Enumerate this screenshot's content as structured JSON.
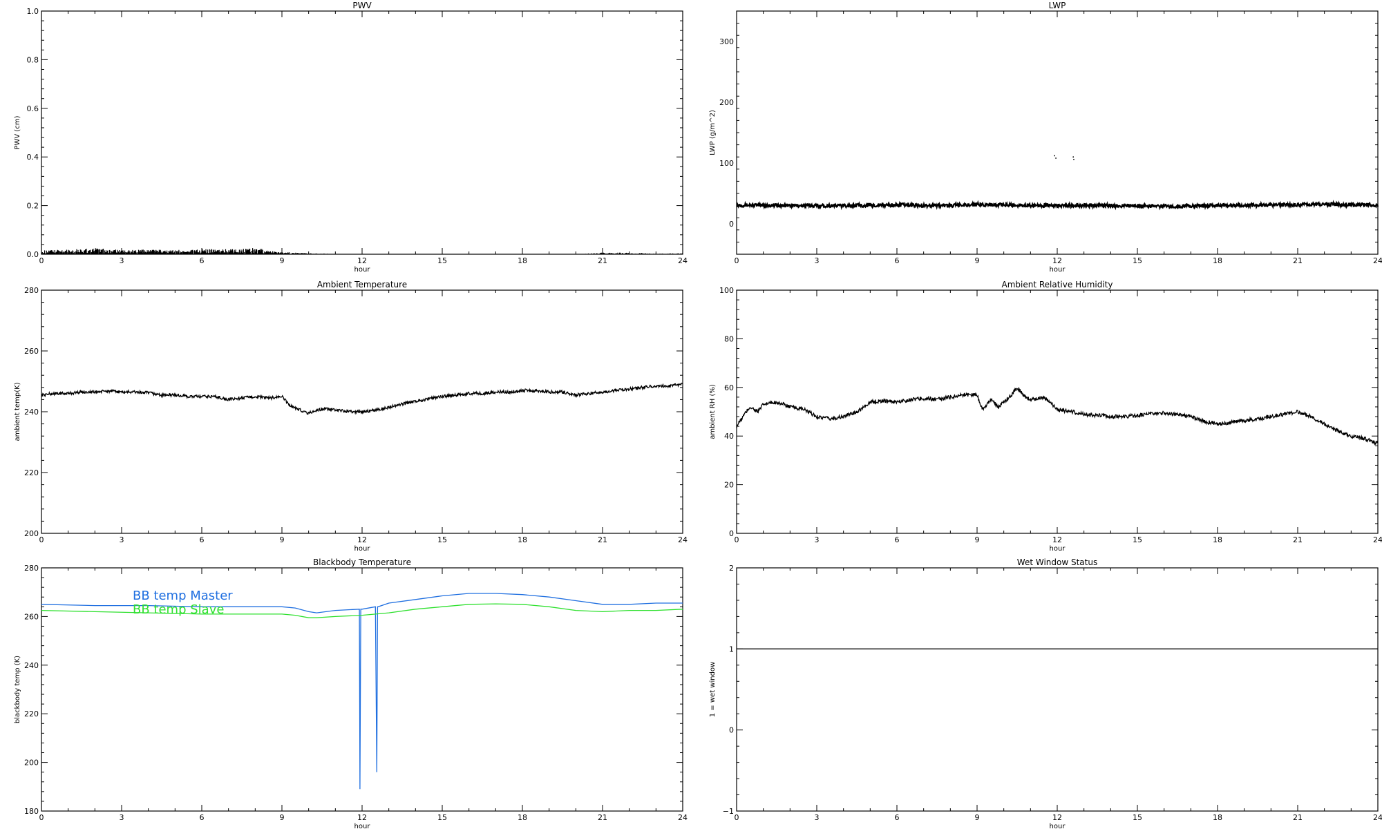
{
  "chart_data": [
    {
      "type": "line",
      "title": "PWV",
      "xlabel": "hour",
      "ylabel": "PWV (cm)",
      "xlim": [
        0,
        24
      ],
      "ylim": [
        0,
        1
      ],
      "xticks": [
        0,
        3,
        6,
        9,
        12,
        15,
        18,
        21,
        24
      ],
      "yticks": [
        0.0,
        0.2,
        0.4,
        0.6,
        0.8,
        1.0
      ],
      "ytick_labels": [
        "0.0",
        "0.2",
        "0.4",
        "0.6",
        "0.8",
        "1.0"
      ],
      "series": [
        {
          "color": "#000000",
          "style": "spiky",
          "x": [
            0,
            1,
            2,
            3,
            4,
            5,
            6,
            7,
            8,
            9,
            10,
            11,
            12,
            13,
            14,
            15,
            16,
            17,
            18,
            19,
            20,
            21,
            22,
            23,
            24
          ],
          "y": [
            0.01,
            0.012,
            0.015,
            0.01,
            0.012,
            0.01,
            0.013,
            0.012,
            0.015,
            0.006,
            0.003,
            0.001,
            0.0,
            0.0,
            0.0,
            0.0,
            0.0,
            0.0,
            0.0,
            0.0,
            0.0,
            0.004,
            0.004,
            0.002,
            0.003
          ],
          "noise": 0.01
        }
      ]
    },
    {
      "type": "line",
      "title": "LWP",
      "xlabel": "hour",
      "ylabel": "LWP (g/m^2)",
      "xlim": [
        0,
        24
      ],
      "ylim": [
        -50,
        350
      ],
      "xticks": [
        0,
        3,
        6,
        9,
        12,
        15,
        18,
        21,
        24
      ],
      "yticks": [
        0,
        100,
        200,
        300
      ],
      "ytick_labels": [
        "0",
        "100",
        "200",
        "300"
      ],
      "series": [
        {
          "color": "#000000",
          "style": "noisy",
          "x": [
            0,
            2,
            4,
            6,
            8,
            9,
            10,
            12,
            14,
            16,
            18,
            20,
            22,
            24
          ],
          "y": [
            31,
            30,
            30,
            31,
            30,
            32,
            31,
            30,
            30,
            29,
            30,
            31,
            32,
            31
          ],
          "noise": 3
        },
        {
          "color": "#000000",
          "style": "dots",
          "x": [
            11.9,
            11.95,
            12.6,
            12.62
          ],
          "y": [
            112,
            108,
            110,
            106
          ]
        }
      ]
    },
    {
      "type": "line",
      "title": "Ambient Temperature",
      "xlabel": "hour",
      "ylabel": "ambient temp(K)",
      "xlim": [
        0,
        24
      ],
      "ylim": [
        200,
        280
      ],
      "xticks": [
        0,
        3,
        6,
        9,
        12,
        15,
        18,
        21,
        24
      ],
      "yticks": [
        200,
        220,
        240,
        260,
        280
      ],
      "ytick_labels": [
        "200",
        "220",
        "240",
        "260",
        "280"
      ],
      "series": [
        {
          "color": "#000000",
          "style": "noisy",
          "x": [
            0,
            0.5,
            1,
            1.5,
            2,
            2.5,
            3,
            3.5,
            4,
            4.5,
            5,
            5.5,
            6,
            6.5,
            7,
            7.5,
            8,
            8.5,
            9,
            9.3,
            9.7,
            10,
            10.3,
            10.6,
            11,
            11.5,
            12,
            12.5,
            13,
            14,
            15,
            16,
            16.5,
            17,
            17.5,
            18,
            18.5,
            19,
            19.5,
            20,
            20.5,
            21,
            21.5,
            22,
            22.5,
            23,
            23.5,
            24
          ],
          "y": [
            245.5,
            246,
            246,
            246.5,
            246.5,
            246.8,
            246.5,
            246.5,
            246.2,
            245.5,
            245.5,
            245,
            245,
            245,
            244,
            244.5,
            245,
            244.5,
            245,
            242,
            240.5,
            239.5,
            240.5,
            241,
            240.5,
            240,
            240,
            240.5,
            241.5,
            243.5,
            245,
            246,
            246,
            246.5,
            246.5,
            247,
            247,
            246.5,
            246.5,
            245.5,
            246,
            246.5,
            247,
            247.5,
            248,
            248.5,
            248.5,
            249
          ],
          "noise": 0.5
        }
      ]
    },
    {
      "type": "line",
      "title": "Ambient Relative Humidity",
      "xlabel": "hour",
      "ylabel": "ambient RH (%)",
      "xlim": [
        0,
        24
      ],
      "ylim": [
        0,
        100
      ],
      "xticks": [
        0,
        3,
        6,
        9,
        12,
        15,
        18,
        21,
        24
      ],
      "yticks": [
        0,
        20,
        40,
        60,
        80,
        100
      ],
      "ytick_labels": [
        "0",
        "20",
        "40",
        "60",
        "80",
        "100"
      ],
      "series": [
        {
          "color": "#000000",
          "style": "noisy",
          "x": [
            0,
            0.3,
            0.5,
            0.8,
            1,
            1.5,
            2,
            2.5,
            3,
            3.5,
            4,
            4.5,
            5,
            5.5,
            6,
            6.5,
            7,
            7.5,
            8,
            8.5,
            9,
            9.2,
            9.5,
            9.8,
            10,
            10.3,
            10.5,
            10.8,
            11,
            11.5,
            12,
            12.5,
            13,
            13.5,
            14,
            14.5,
            15,
            16,
            17,
            17.5,
            18,
            18.5,
            19,
            19.5,
            20,
            20.5,
            21,
            21.5,
            22,
            22.5,
            23,
            23.5,
            24
          ],
          "y": [
            44,
            49,
            52,
            50,
            53,
            54,
            52,
            51,
            48,
            47,
            48,
            50,
            54,
            54.5,
            54,
            55,
            55.5,
            55,
            56,
            57,
            57,
            51,
            55,
            52,
            54,
            57,
            60,
            56,
            55,
            56,
            51,
            50,
            49,
            48.5,
            48,
            48,
            48.5,
            49.5,
            48,
            46,
            45,
            45.5,
            46.5,
            47,
            48,
            49,
            50,
            48,
            45,
            42,
            40,
            39,
            37
          ],
          "noise": 0.8
        }
      ]
    },
    {
      "type": "line",
      "title": "Blackbody Temperature",
      "xlabel": "hour",
      "ylabel": "blackbody temp (K)",
      "xlim": [
        0,
        24
      ],
      "ylim": [
        180,
        280
      ],
      "xticks": [
        0,
        3,
        6,
        9,
        12,
        15,
        18,
        21,
        24
      ],
      "yticks": [
        180,
        200,
        220,
        240,
        260,
        280
      ],
      "ytick_labels": [
        "180",
        "200",
        "220",
        "240",
        "260",
        "280"
      ],
      "legend": "top-left",
      "series": [
        {
          "name": "BB temp Master",
          "color": "#1f6fe0",
          "style": "smooth",
          "x": [
            0,
            2,
            4,
            6,
            8,
            9,
            9.5,
            10,
            10.3,
            11,
            11.9,
            11.92,
            11.95,
            12,
            12.5,
            12.55,
            12.58,
            12.6,
            13,
            14,
            15,
            16,
            17,
            18,
            19,
            20,
            21,
            22,
            23,
            24
          ],
          "y": [
            265,
            264.5,
            264.5,
            264,
            264,
            264,
            263.5,
            262,
            261.5,
            262.5,
            263,
            189,
            263,
            263,
            264,
            196,
            264,
            264,
            265.5,
            267,
            268.5,
            269.5,
            269.5,
            269,
            268,
            266.5,
            265,
            265,
            265.5,
            265.5
          ]
        },
        {
          "name": "BB temp Slave",
          "color": "#2ee02e",
          "style": "smooth",
          "x": [
            0,
            2,
            4,
            6,
            8,
            9,
            9.5,
            10,
            10.3,
            11,
            12,
            13,
            14,
            15,
            16,
            17,
            18,
            19,
            20,
            21,
            22,
            23,
            24
          ],
          "y": [
            262.5,
            262,
            261.5,
            261,
            261,
            261,
            260.5,
            259.5,
            259.5,
            260,
            260.5,
            261.5,
            263,
            264,
            265,
            265.2,
            265,
            264,
            262.5,
            262,
            262.5,
            262.5,
            263
          ]
        }
      ]
    },
    {
      "type": "line",
      "title": "Wet Window Status",
      "xlabel": "hour",
      "ylabel": "1 = wet window",
      "xlim": [
        0,
        24
      ],
      "ylim": [
        -1,
        2
      ],
      "xticks": [
        0,
        3,
        6,
        9,
        12,
        15,
        18,
        21,
        24
      ],
      "yticks": [
        -1,
        0,
        1,
        2
      ],
      "ytick_labels": [
        "−1",
        "0",
        "1",
        "2"
      ],
      "series": [
        {
          "color": "#000000",
          "style": "smooth",
          "x": [
            0,
            24
          ],
          "y": [
            1,
            1
          ]
        }
      ]
    }
  ]
}
